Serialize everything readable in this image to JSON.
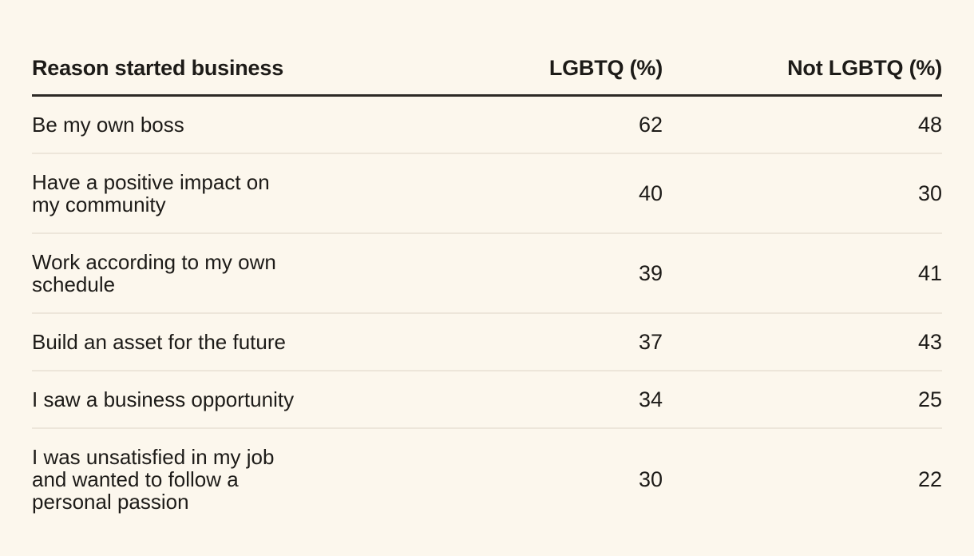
{
  "page": {
    "background_color": "#FCF7ED",
    "text_color": "#1D1B18",
    "header_rule_color": "#2D2A26",
    "row_divider_color": "#EDE6DA"
  },
  "table": {
    "headers": {
      "reason": "Reason started business",
      "lgbtq": "LGBTQ (%)",
      "not_lgbtq": "Not LGBTQ (%)"
    },
    "rows": [
      {
        "reason": "Be my own boss",
        "lgbtq": "62",
        "not_lgbtq": "48"
      },
      {
        "reason": "Have a positive impact on\nmy community",
        "lgbtq": "40",
        "not_lgbtq": "30"
      },
      {
        "reason": "Work according to my own\nschedule",
        "lgbtq": "39",
        "not_lgbtq": "41"
      },
      {
        "reason": "Build an asset for the future",
        "lgbtq": "37",
        "not_lgbtq": "43"
      },
      {
        "reason": "I saw a business opportunity",
        "lgbtq": "34",
        "not_lgbtq": "25"
      },
      {
        "reason": "I was unsatisfied in my job\nand wanted to follow a\npersonal passion",
        "lgbtq": "30",
        "not_lgbtq": "22"
      }
    ]
  },
  "chart_data": {
    "type": "table",
    "columns": [
      "Reason started business",
      "LGBTQ (%)",
      "Not LGBTQ (%)"
    ],
    "rows": [
      [
        "Be my own boss",
        62,
        48
      ],
      [
        "Have a positive impact on my community",
        40,
        30
      ],
      [
        "Work according to my own schedule",
        39,
        41
      ],
      [
        "Build an asset for the future",
        37,
        43
      ],
      [
        "I saw a business opportunity",
        34,
        25
      ],
      [
        "I was unsatisfied in my job and wanted to follow a personal passion",
        30,
        22
      ]
    ]
  }
}
